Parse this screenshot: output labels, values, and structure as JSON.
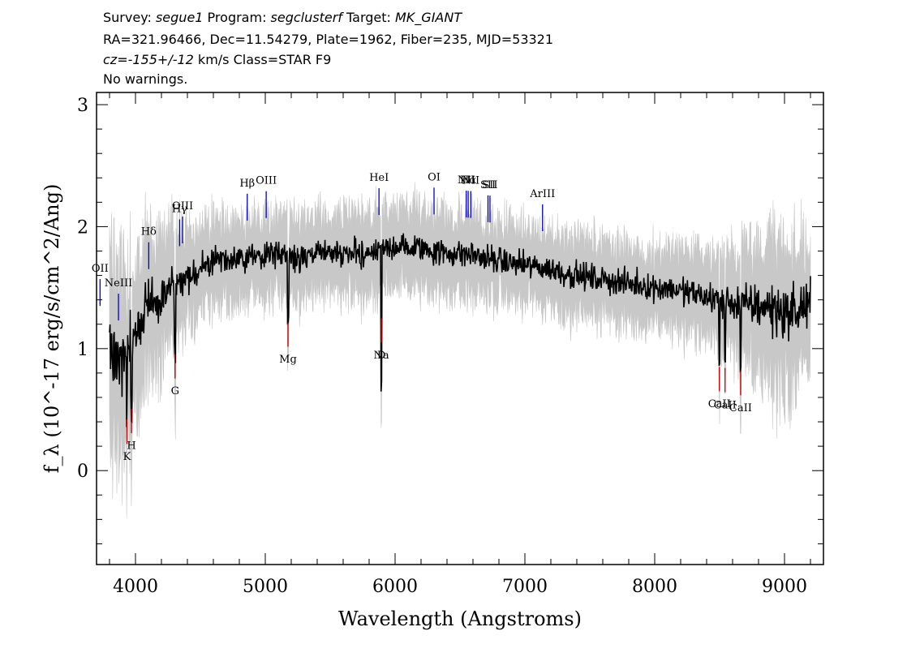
{
  "header": {
    "line1": [
      {
        "text": "Survey: ",
        "italic": false
      },
      {
        "text": "segue1",
        "italic": true
      },
      {
        "text": " Program: ",
        "italic": false
      },
      {
        "text": "segclusterf",
        "italic": true
      },
      {
        "text": " Target: ",
        "italic": false
      },
      {
        "text": "MK_GIANT",
        "italic": true
      }
    ],
    "line2": "RA=321.96466, Dec=11.54279, Plate=1962, Fiber=235, MJD=53321",
    "line3": [
      {
        "text": "cz=-155+/-12",
        "italic": true
      },
      {
        "text": " km/s Class=STAR F9",
        "italic": false
      }
    ],
    "line4": "No warnings."
  },
  "chart_data": {
    "type": "line",
    "xlabel": "Wavelength (Angstroms)",
    "ylabel": "f_λ (10^-17 erg/s/cm^2/Ang)",
    "xlim": [
      3700,
      9300
    ],
    "ylim": [
      -0.77,
      3.1
    ],
    "xticks": [
      4000,
      5000,
      6000,
      7000,
      8000,
      9000
    ],
    "yticks": [
      0,
      1,
      2,
      3
    ],
    "grid": false,
    "series": [
      {
        "role": "flux",
        "color": "#000000",
        "x": [
          3800,
          3850,
          3900,
          3950,
          4000,
          4100,
          4200,
          4300,
          4400,
          4500,
          4600,
          4700,
          4800,
          4900,
          5000,
          5100,
          5200,
          5300,
          5400,
          5500,
          5600,
          5700,
          5800,
          5900,
          6000,
          6100,
          6200,
          6300,
          6400,
          6500,
          6600,
          6700,
          6800,
          6900,
          7000,
          7100,
          7200,
          7300,
          7400,
          7500,
          7600,
          7700,
          7800,
          7900,
          8000,
          8100,
          8200,
          8300,
          8400,
          8500,
          8600,
          8700,
          8800,
          8900,
          9000,
          9100,
          9200
        ],
        "y": [
          1.05,
          0.95,
          0.9,
          1.0,
          1.15,
          1.35,
          1.45,
          1.5,
          1.6,
          1.65,
          1.7,
          1.72,
          1.75,
          1.75,
          1.77,
          1.78,
          1.76,
          1.75,
          1.77,
          1.78,
          1.78,
          1.8,
          1.78,
          1.8,
          1.85,
          1.82,
          1.83,
          1.8,
          1.78,
          1.78,
          1.77,
          1.74,
          1.72,
          1.7,
          1.68,
          1.67,
          1.65,
          1.62,
          1.6,
          1.58,
          1.57,
          1.55,
          1.53,
          1.52,
          1.5,
          1.5,
          1.47,
          1.45,
          1.42,
          1.4,
          1.38,
          1.36,
          1.35,
          1.33,
          1.3,
          1.3,
          1.4
        ]
      },
      {
        "role": "error envelope",
        "color": "#c8c8c8",
        "x": [
          3800,
          4000,
          4500,
          5000,
          5500,
          6000,
          6500,
          7000,
          7500,
          8000,
          8500,
          8800,
          9000,
          9200
        ],
        "y": [
          0.7,
          0.55,
          0.3,
          0.28,
          0.28,
          0.28,
          0.28,
          0.27,
          0.27,
          0.27,
          0.32,
          0.45,
          0.6,
          0.4
        ]
      }
    ],
    "emission_lines": [
      {
        "label": "OII",
        "wavelength": 3727,
        "color": "#0000cc"
      },
      {
        "label": "NeIII",
        "wavelength": 3869,
        "color": "#0000cc"
      },
      {
        "label": "Hδ",
        "wavelength": 4102,
        "color": "#0000cc"
      },
      {
        "label": "Hγ",
        "wavelength": 4340,
        "color": "#0000cc"
      },
      {
        "label": "OIII",
        "wavelength": 4363,
        "color": "#0000cc"
      },
      {
        "label": "Hβ",
        "wavelength": 4861,
        "color": "#0000cc"
      },
      {
        "label": "OIII",
        "wavelength": 5007,
        "color": "#0000cc"
      },
      {
        "label": "HeI",
        "wavelength": 5876,
        "color": "#0000cc"
      },
      {
        "label": "OI",
        "wavelength": 6300,
        "color": "#0000cc"
      },
      {
        "label": "NII",
        "wavelength": 6583,
        "color": "#0000cc"
      },
      {
        "label": "Hα",
        "wavelength": 6563,
        "color": "#0000cc"
      },
      {
        "label": "NII",
        "wavelength": 6548,
        "color": "#0000cc"
      },
      {
        "label": "SII",
        "wavelength": 6716,
        "color": "#0000cc"
      },
      {
        "label": "SII",
        "wavelength": 6731,
        "color": "#0000cc"
      },
      {
        "label": "ArIII",
        "wavelength": 7136,
        "color": "#0000cc"
      }
    ],
    "absorption_lines": [
      {
        "label": "K",
        "wavelength": 3934,
        "color": "#cc0000"
      },
      {
        "label": "H",
        "wavelength": 3969,
        "color": "#cc0000"
      },
      {
        "label": "G",
        "wavelength": 4305,
        "color": "#cc0000"
      },
      {
        "label": "Mg",
        "wavelength": 5175,
        "color": "#cc0000"
      },
      {
        "label": "Na",
        "wavelength": 5894,
        "color": "#cc0000"
      },
      {
        "label": "D",
        "wavelength": 5894,
        "color": "#cc0000"
      },
      {
        "label": "CaII",
        "wavelength": 8498,
        "color": "#cc0000"
      },
      {
        "label": "CaII",
        "wavelength": 8542,
        "color": "#cc0000"
      },
      {
        "label": "CaII",
        "wavelength": 8662,
        "color": "#cc0000"
      }
    ]
  }
}
